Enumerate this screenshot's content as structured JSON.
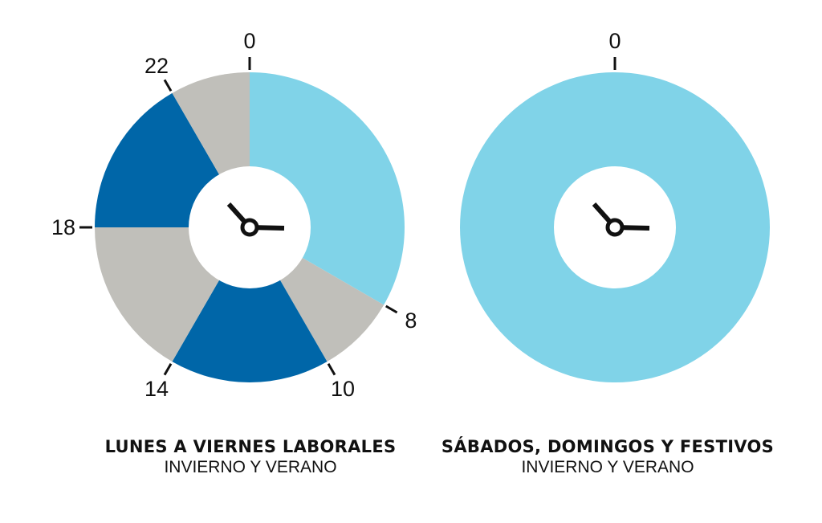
{
  "colors": {
    "light_blue": "#80d3e8",
    "dark_blue": "#0066a8",
    "gray": "#c0bfba",
    "hand": "#111111",
    "hole": "#ffffff"
  },
  "clocks": [
    {
      "name": "weekday",
      "title": "LUNES A VIERNES LABORALES",
      "subtitle": "INVIERNO Y VERANO",
      "segments": [
        {
          "from_hour": 0,
          "to_hour": 8,
          "color": "light_blue"
        },
        {
          "from_hour": 8,
          "to_hour": 10,
          "color": "gray"
        },
        {
          "from_hour": 10,
          "to_hour": 14,
          "color": "dark_blue"
        },
        {
          "from_hour": 14,
          "to_hour": 18,
          "color": "gray"
        },
        {
          "from_hour": 18,
          "to_hour": 22,
          "color": "dark_blue"
        },
        {
          "from_hour": 22,
          "to_hour": 24,
          "color": "gray"
        }
      ],
      "tick_labels": [
        {
          "hour": 0,
          "label": "0"
        },
        {
          "hour": 8,
          "label": "8"
        },
        {
          "hour": 10,
          "label": "10"
        },
        {
          "hour": 14,
          "label": "14"
        },
        {
          "hour": 18,
          "label": "18"
        },
        {
          "hour": 22,
          "label": "22"
        }
      ]
    },
    {
      "name": "weekend",
      "title": "SÁBADOS, DOMINGOS Y FESTIVOS",
      "subtitle": "INVIERNO Y VERANO",
      "segments": [
        {
          "from_hour": 0,
          "to_hour": 24,
          "color": "light_blue"
        }
      ],
      "tick_labels": [
        {
          "hour": 0,
          "label": "0"
        }
      ]
    }
  ]
}
